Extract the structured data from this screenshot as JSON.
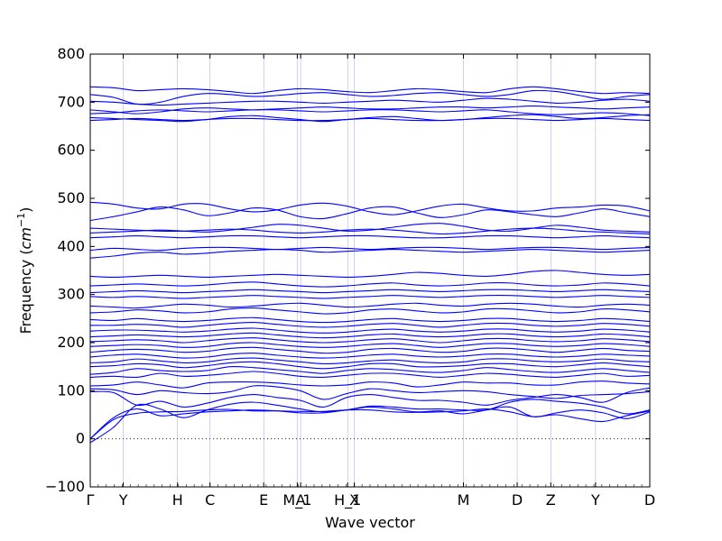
{
  "chart_data": {
    "type": "line",
    "title": "",
    "xlabel": "Wave vector",
    "ylabel": "Frequency",
    "ylabel_unit": "cm",
    "ylabel_unit_exponent": "−1",
    "ylim": [
      -100,
      800
    ],
    "y_ticks": [
      -100,
      0,
      100,
      200,
      300,
      400,
      500,
      600,
      700,
      800
    ],
    "x_ticks": [
      {
        "label": "Γ",
        "pos": 0.0
      },
      {
        "label": "Y",
        "pos": 0.059
      },
      {
        "label": "H",
        "pos": 0.156
      },
      {
        "label": "C",
        "pos": 0.214
      },
      {
        "label": "E",
        "pos": 0.31
      },
      {
        "label": "M_1",
        "pos": 0.37
      },
      {
        "label": "A",
        "pos": 0.376
      },
      {
        "label": "H_1",
        "pos": 0.46
      },
      {
        "label": "X",
        "pos": 0.472
      },
      {
        "label": "M",
        "pos": 0.667
      },
      {
        "label": "D",
        "pos": 0.763
      },
      {
        "label": "Z",
        "pos": 0.823
      },
      {
        "label": "Y",
        "pos": 0.903
      },
      {
        "label": "D",
        "pos": 1.0
      }
    ],
    "zero_line": true,
    "line_color": "#0000ff",
    "band_segments": 24,
    "bands": [
      [
        0,
        40,
        53,
        56,
        57,
        60,
        61,
        58,
        58,
        57,
        57,
        60,
        60,
        56,
        55,
        56,
        58,
        62,
        56,
        46,
        50,
        42,
        36,
        48,
        58
      ],
      [
        0,
        44,
        62,
        48,
        52,
        56,
        58,
        60,
        58,
        54,
        54,
        60,
        66,
        62,
        56,
        58,
        52,
        60,
        66,
        46,
        54,
        60,
        54,
        42,
        56
      ],
      [
        -8,
        24,
        70,
        62,
        44,
        60,
        72,
        76,
        70,
        62,
        56,
        60,
        68,
        66,
        62,
        62,
        60,
        60,
        76,
        82,
        78,
        74,
        66,
        52,
        60
      ],
      [
        98,
        96,
        70,
        78,
        66,
        74,
        86,
        92,
        86,
        80,
        66,
        86,
        92,
        86,
        80,
        80,
        76,
        70,
        80,
        86,
        92,
        86,
        76,
        96,
        106
      ],
      [
        104,
        102,
        92,
        100,
        96,
        94,
        98,
        110,
        108,
        100,
        82,
        94,
        104,
        100,
        96,
        98,
        100,
        98,
        92,
        88,
        84,
        90,
        92,
        94,
        98
      ],
      [
        110,
        112,
        118,
        112,
        106,
        116,
        118,
        118,
        116,
        112,
        110,
        112,
        118,
        116,
        108,
        112,
        118,
        116,
        116,
        112,
        112,
        118,
        120,
        116,
        114
      ],
      [
        128,
        130,
        128,
        136,
        130,
        132,
        136,
        140,
        136,
        130,
        128,
        132,
        136,
        136,
        132,
        128,
        132,
        136,
        134,
        130,
        128,
        132,
        136,
        130,
        132
      ],
      [
        134,
        138,
        146,
        142,
        140,
        142,
        150,
        148,
        144,
        140,
        136,
        142,
        146,
        144,
        140,
        138,
        142,
        148,
        144,
        140,
        138,
        142,
        146,
        142,
        138
      ],
      [
        150,
        152,
        156,
        154,
        148,
        152,
        158,
        160,
        156,
        150,
        146,
        150,
        156,
        156,
        150,
        150,
        152,
        156,
        156,
        152,
        150,
        154,
        158,
        154,
        150
      ],
      [
        158,
        160,
        166,
        162,
        158,
        160,
        166,
        168,
        164,
        160,
        156,
        158,
        162,
        164,
        160,
        158,
        160,
        166,
        166,
        162,
        160,
        162,
        166,
        162,
        160
      ],
      [
        170,
        174,
        176,
        172,
        168,
        170,
        176,
        178,
        174,
        170,
        168,
        170,
        174,
        176,
        172,
        170,
        172,
        176,
        176,
        172,
        170,
        172,
        176,
        174,
        172
      ],
      [
        180,
        184,
        186,
        184,
        180,
        182,
        188,
        190,
        186,
        182,
        178,
        180,
        186,
        188,
        184,
        180,
        182,
        188,
        188,
        184,
        180,
        184,
        188,
        184,
        182
      ],
      [
        192,
        194,
        196,
        194,
        190,
        192,
        198,
        200,
        196,
        192,
        190,
        192,
        196,
        198,
        194,
        190,
        194,
        198,
        198,
        194,
        192,
        194,
        198,
        196,
        192
      ],
      [
        202,
        204,
        206,
        204,
        200,
        204,
        208,
        210,
        206,
        202,
        200,
        202,
        206,
        208,
        204,
        200,
        204,
        208,
        208,
        204,
        202,
        204,
        208,
        206,
        202
      ],
      [
        212,
        214,
        216,
        214,
        212,
        214,
        218,
        220,
        216,
        212,
        210,
        212,
        216,
        218,
        214,
        212,
        214,
        218,
        218,
        214,
        212,
        214,
        218,
        216,
        212
      ],
      [
        224,
        226,
        226,
        224,
        222,
        224,
        228,
        230,
        226,
        222,
        220,
        222,
        226,
        228,
        224,
        222,
        224,
        228,
        228,
        224,
        222,
        224,
        228,
        226,
        222
      ],
      [
        236,
        236,
        238,
        236,
        232,
        236,
        240,
        242,
        238,
        234,
        232,
        234,
        238,
        240,
        236,
        232,
        236,
        240,
        240,
        236,
        234,
        236,
        240,
        238,
        234
      ],
      [
        248,
        246,
        250,
        246,
        244,
        246,
        250,
        252,
        248,
        244,
        242,
        244,
        248,
        250,
        246,
        244,
        246,
        250,
        250,
        246,
        244,
        246,
        250,
        248,
        244
      ],
      [
        262,
        264,
        268,
        266,
        262,
        264,
        270,
        272,
        268,
        264,
        260,
        262,
        268,
        270,
        266,
        262,
        264,
        270,
        270,
        266,
        262,
        264,
        270,
        268,
        264
      ],
      [
        276,
        274,
        272,
        276,
        280,
        278,
        274,
        276,
        280,
        282,
        278,
        274,
        276,
        280,
        282,
        278,
        276,
        280,
        282,
        280,
        276,
        274,
        278,
        280,
        278
      ],
      [
        296,
        294,
        296,
        294,
        292,
        294,
        296,
        298,
        296,
        294,
        292,
        294,
        296,
        298,
        296,
        294,
        296,
        298,
        298,
        296,
        294,
        296,
        298,
        296,
        294
      ],
      [
        304,
        306,
        308,
        306,
        304,
        306,
        308,
        310,
        308,
        306,
        304,
        306,
        308,
        310,
        308,
        306,
        308,
        310,
        310,
        308,
        306,
        308,
        310,
        308,
        306
      ],
      [
        318,
        320,
        322,
        320,
        318,
        320,
        324,
        326,
        322,
        318,
        316,
        318,
        322,
        324,
        320,
        318,
        320,
        324,
        324,
        320,
        318,
        320,
        324,
        322,
        318
      ],
      [
        338,
        336,
        338,
        340,
        338,
        336,
        338,
        340,
        342,
        340,
        338,
        336,
        338,
        342,
        346,
        344,
        340,
        338,
        342,
        348,
        350,
        346,
        342,
        340,
        342
      ],
      [
        376,
        380,
        386,
        388,
        384,
        386,
        390,
        392,
        394,
        392,
        388,
        390,
        392,
        394,
        392,
        390,
        388,
        390,
        392,
        394,
        392,
        390,
        388,
        390,
        392
      ],
      [
        392,
        396,
        394,
        392,
        396,
        398,
        398,
        396,
        394,
        396,
        398,
        396,
        394,
        396,
        398,
        398,
        396,
        394,
        396,
        398,
        398,
        396,
        394,
        396,
        398
      ],
      [
        418,
        420,
        422,
        420,
        418,
        420,
        422,
        422,
        420,
        418,
        420,
        422,
        422,
        420,
        418,
        418,
        420,
        422,
        422,
        420,
        418,
        420,
        422,
        420,
        418
      ],
      [
        428,
        430,
        432,
        434,
        432,
        430,
        434,
        440,
        446,
        444,
        438,
        432,
        434,
        440,
        446,
        448,
        442,
        434,
        432,
        438,
        444,
        440,
        434,
        432,
        430
      ],
      [
        438,
        436,
        434,
        432,
        432,
        434,
        436,
        434,
        430,
        428,
        430,
        434,
        436,
        434,
        430,
        426,
        428,
        432,
        436,
        438,
        436,
        432,
        430,
        428,
        426
      ],
      [
        454,
        462,
        472,
        482,
        476,
        464,
        470,
        480,
        476,
        462,
        458,
        468,
        480,
        482,
        470,
        460,
        466,
        476,
        472,
        466,
        462,
        470,
        478,
        470,
        462
      ],
      [
        492,
        488,
        480,
        478,
        488,
        488,
        478,
        472,
        476,
        486,
        490,
        484,
        472,
        466,
        474,
        484,
        488,
        480,
        474,
        474,
        480,
        482,
        486,
        484,
        474
      ],
      [
        662,
        664,
        666,
        664,
        662,
        664,
        666,
        666,
        664,
        662,
        662,
        664,
        666,
        664,
        662,
        662,
        664,
        666,
        666,
        664,
        662,
        664,
        666,
        664,
        662
      ],
      [
        668,
        666,
        664,
        662,
        660,
        664,
        670,
        672,
        668,
        664,
        660,
        664,
        668,
        670,
        666,
        662,
        664,
        668,
        672,
        674,
        670,
        666,
        668,
        672,
        674
      ],
      [
        676,
        678,
        682,
        684,
        682,
        680,
        682,
        684,
        684,
        682,
        680,
        682,
        684,
        684,
        682,
        680,
        682,
        684,
        680,
        676,
        674,
        676,
        678,
        676,
        672
      ],
      [
        684,
        680,
        676,
        680,
        686,
        688,
        686,
        684,
        686,
        688,
        690,
        688,
        686,
        686,
        688,
        690,
        690,
        688,
        690,
        692,
        690,
        688,
        686,
        688,
        690
      ],
      [
        702,
        700,
        696,
        694,
        696,
        698,
        700,
        702,
        702,
        700,
        698,
        700,
        702,
        704,
        702,
        700,
        704,
        708,
        706,
        702,
        698,
        700,
        704,
        706,
        702
      ],
      [
        716,
        710,
        696,
        700,
        712,
        718,
        716,
        712,
        714,
        718,
        720,
        716,
        712,
        714,
        718,
        720,
        716,
        712,
        716,
        724,
        722,
        714,
        706,
        712,
        716
      ],
      [
        732,
        730,
        724,
        726,
        728,
        726,
        722,
        718,
        724,
        728,
        726,
        722,
        720,
        724,
        728,
        726,
        722,
        720,
        728,
        732,
        728,
        722,
        718,
        720,
        718
      ]
    ]
  }
}
